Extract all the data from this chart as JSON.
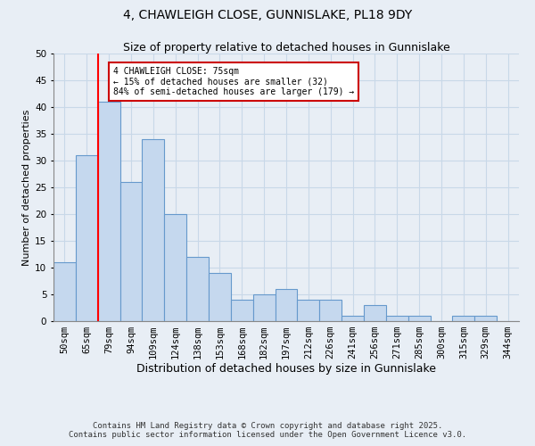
{
  "title": "4, CHAWLEIGH CLOSE, GUNNISLAKE, PL18 9DY",
  "subtitle": "Size of property relative to detached houses in Gunnislake",
  "xlabel": "Distribution of detached houses by size in Gunnislake",
  "ylabel": "Number of detached properties",
  "bar_color": "#c5d8ee",
  "bar_edge_color": "#6699cc",
  "categories": [
    "50sqm",
    "65sqm",
    "79sqm",
    "94sqm",
    "109sqm",
    "124sqm",
    "138sqm",
    "153sqm",
    "168sqm",
    "182sqm",
    "197sqm",
    "212sqm",
    "226sqm",
    "241sqm",
    "256sqm",
    "271sqm",
    "285sqm",
    "300sqm",
    "315sqm",
    "329sqm",
    "344sqm"
  ],
  "values": [
    11,
    31,
    41,
    26,
    34,
    20,
    12,
    9,
    4,
    5,
    6,
    4,
    4,
    1,
    3,
    1,
    1,
    0,
    1,
    1,
    0
  ],
  "ylim": [
    0,
    50
  ],
  "yticks": [
    0,
    5,
    10,
    15,
    20,
    25,
    30,
    35,
    40,
    45,
    50
  ],
  "red_line_index": 2,
  "annotation_text": "4 CHAWLEIGH CLOSE: 75sqm\n← 15% of detached houses are smaller (32)\n84% of semi-detached houses are larger (179) →",
  "annotation_box_color": "#ffffff",
  "annotation_box_edge_color": "#cc0000",
  "footer_line1": "Contains HM Land Registry data © Crown copyright and database right 2025.",
  "footer_line2": "Contains public sector information licensed under the Open Government Licence v3.0.",
  "background_color": "#e8eef5",
  "plot_bg_color": "#e8eef5",
  "grid_color": "#c8d8e8",
  "title_fontsize": 10,
  "subtitle_fontsize": 9,
  "xlabel_fontsize": 9,
  "ylabel_fontsize": 8,
  "tick_fontsize": 7.5,
  "footer_fontsize": 6.5
}
